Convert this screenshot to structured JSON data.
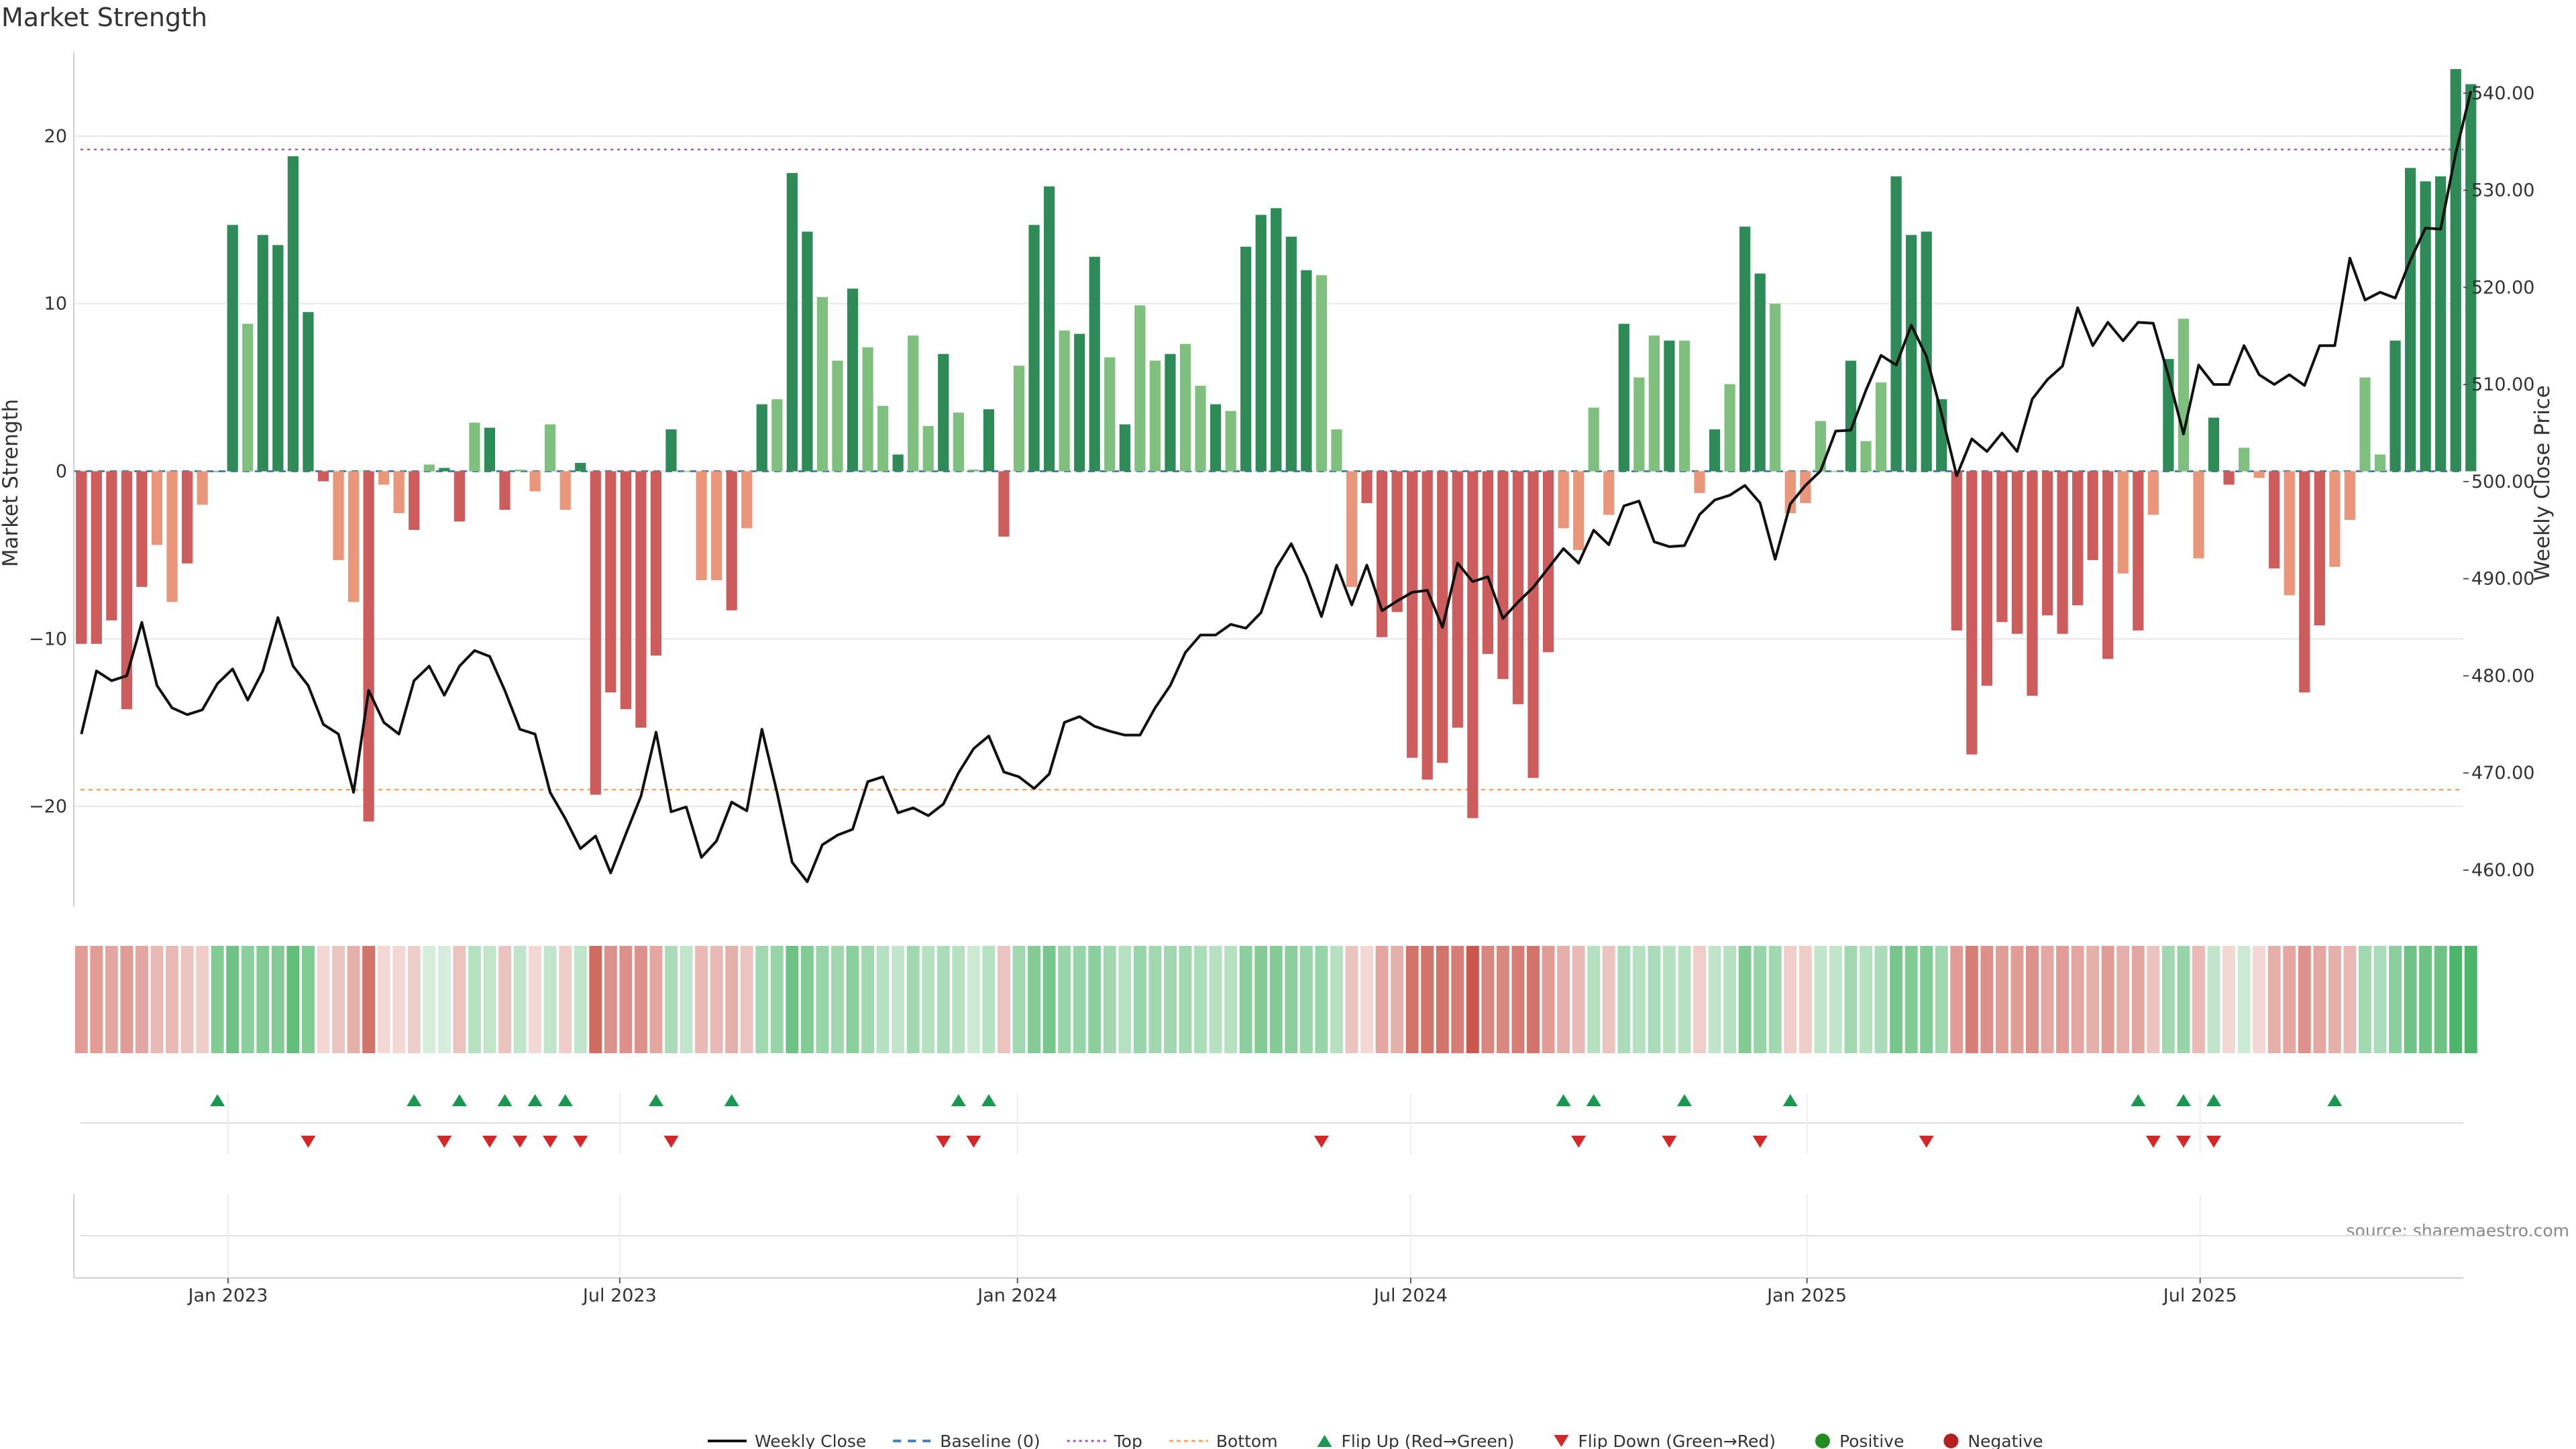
{
  "chart_data": {
    "title": "Market Strength",
    "source": "source: sharemaestro.com",
    "type": "bar",
    "y_left_label": "Market Strength",
    "y_right_label": "Weekly Close Price",
    "y_left_ticks": [
      "20",
      "10",
      "0",
      "−10",
      "−20"
    ],
    "y_left_tick_values": [
      20,
      10,
      0,
      -10,
      -20
    ],
    "y_right_ticks": [
      "540.00",
      "530.00",
      "520.00",
      "510.00",
      "500.00",
      "490.00",
      "480.00",
      "470.00",
      "460.00"
    ],
    "y_right_tick_values": [
      540,
      530,
      520,
      510,
      500,
      490,
      480,
      470,
      460
    ],
    "ylim_left": [
      -26,
      25
    ],
    "ylim_right": [
      456.2,
      544.2
    ],
    "x_ticks": [
      "Jan 2023",
      "Jul 2023",
      "Jan 2024",
      "Jul 2024",
      "Jan 2025",
      "Jul 2025"
    ],
    "x_tick_weeks": [
      9.7,
      35.6,
      61.9,
      87.9,
      114.1,
      140.1
    ],
    "top_line": 19.2,
    "bottom_line": -19,
    "baseline": 0,
    "weeks": 158,
    "strength": [
      -10.3,
      -10.3,
      -8.9,
      -14.2,
      -6.9,
      -4.4,
      -7.8,
      -5.5,
      -2,
      0,
      14.7,
      8.8,
      14.1,
      13.5,
      18.8,
      9.5,
      -0.6,
      -5.3,
      -7.8,
      -20.9,
      -0.8,
      -2.5,
      -3.5,
      0.4,
      0.2,
      -3,
      2.9,
      2.6,
      -2.3,
      0.1,
      -1.2,
      2.8,
      -2.3,
      0.5,
      -19.3,
      -13.2,
      -14.2,
      -15.3,
      -11,
      2.5,
      0,
      -6.5,
      -6.5,
      -8.3,
      -3.4,
      4,
      4.3,
      17.8,
      14.3,
      10.4,
      6.6,
      10.9,
      7.4,
      3.9,
      1,
      8.1,
      2.7,
      7,
      3.5,
      0.1,
      3.7,
      -3.9,
      6.3,
      14.7,
      17,
      8.4,
      8.2,
      12.8,
      6.8,
      2.8,
      9.9,
      6.6,
      7,
      7.6,
      5.1,
      4,
      3.6,
      13.4,
      15.3,
      15.7,
      14,
      12,
      11.7,
      2.5,
      -6.9,
      -1.9,
      -9.9,
      -8.4,
      -17.1,
      -18.4,
      -17.4,
      -15.3,
      -20.7,
      -10.9,
      -12.4,
      -13.9,
      -18.3,
      -10.8,
      -3.4,
      -4.7,
      3.8,
      -2.6,
      8.8,
      5.6,
      8.1,
      7.8,
      7.8,
      -1.3,
      2.5,
      5.2,
      14.6,
      11.8,
      10,
      -2.5,
      -1.9,
      3,
      0,
      6.6,
      1.8,
      5.3,
      17.6,
      14.1,
      14.3,
      4.3,
      -9.5,
      -16.9,
      -12.8,
      -9,
      -9.7,
      -13.4,
      -8.6,
      -9.7,
      -8,
      -5.3,
      -11.2,
      -6.1,
      -9.5,
      -2.6,
      6.7,
      9.1,
      -5.2,
      3.2,
      -0.8,
      1.4,
      -0.4,
      -5.8,
      -7.4,
      -13.2,
      -9.2,
      -5.7,
      -2.9,
      5.6,
      1,
      7.8,
      18.1,
      17.3,
      17.6,
      24,
      23.1
    ],
    "weekly_close": [
      474,
      480.5,
      479.5,
      480,
      485.5,
      479,
      476.7,
      476,
      476.5,
      479.2,
      480.7,
      477.5,
      480.5,
      486,
      481,
      479,
      475,
      474,
      468,
      478.5,
      475.2,
      474,
      479.5,
      481,
      478,
      481,
      482.6,
      482,
      478.5,
      474.5,
      474,
      468,
      465.3,
      462.2,
      463.5,
      459.7,
      463.7,
      467.6,
      474.2,
      466,
      466.5,
      461.3,
      463,
      467,
      466.1,
      474.5,
      468,
      460.8,
      458.8,
      462.6,
      463.6,
      464.2,
      469.1,
      469.6,
      465.9,
      466.4,
      465.6,
      466.8,
      470,
      472.5,
      473.8,
      470.1,
      469.6,
      468.4,
      469.9,
      475.2,
      475.8,
      474.8,
      474.3,
      473.9,
      473.9,
      476.7,
      479,
      482.4,
      484.2,
      484.2,
      485.3,
      484.9,
      486.5,
      491.1,
      493.6,
      490.3,
      486.1,
      491.4,
      487.3,
      491.4,
      486.7,
      487.7,
      488.6,
      488.8,
      485,
      491.6,
      489.7,
      490.2,
      485.9,
      487.6,
      489.1,
      491.1,
      493.1,
      491.6,
      495,
      493.5,
      497.5,
      498,
      493.8,
      493.3,
      493.4,
      496.6,
      498.1,
      498.6,
      499.6,
      497.8,
      492,
      497.7,
      499.6,
      501.1,
      505.2,
      505.3,
      509.4,
      513,
      512,
      516.1,
      512.9,
      507,
      500.6,
      504.4,
      503.1,
      505,
      503.1,
      508.5,
      510.5,
      511.9,
      517.9,
      514,
      516.4,
      514.5,
      516.4,
      516.3,
      510.9,
      504.9,
      512,
      510,
      510,
      514,
      511,
      510,
      511,
      509.9,
      514,
      514,
      523,
      518.7,
      519.5,
      518.9,
      522.8,
      526.1,
      526,
      533.8,
      540.2
    ],
    "heat_intensity": [
      0.5,
      0.5,
      0.45,
      0.5,
      0.45,
      0.35,
      0.35,
      0.3,
      0.25,
      0.6,
      0.7,
      0.55,
      0.6,
      0.6,
      0.75,
      0.6,
      0.2,
      0.3,
      0.4,
      0.7,
      0.2,
      0.2,
      0.25,
      0.2,
      0.2,
      0.3,
      0.35,
      0.3,
      0.3,
      0.3,
      0.2,
      0.3,
      0.25,
      0.3,
      0.75,
      0.55,
      0.55,
      0.55,
      0.45,
      0.4,
      0.3,
      0.35,
      0.35,
      0.4,
      0.3,
      0.45,
      0.5,
      0.7,
      0.6,
      0.5,
      0.45,
      0.55,
      0.45,
      0.35,
      0.3,
      0.45,
      0.35,
      0.4,
      0.35,
      0.25,
      0.35,
      0.3,
      0.45,
      0.6,
      0.65,
      0.5,
      0.5,
      0.55,
      0.45,
      0.35,
      0.5,
      0.45,
      0.45,
      0.45,
      0.4,
      0.35,
      0.35,
      0.55,
      0.6,
      0.6,
      0.55,
      0.5,
      0.5,
      0.35,
      0.3,
      0.2,
      0.45,
      0.4,
      0.7,
      0.7,
      0.7,
      0.65,
      0.85,
      0.6,
      0.6,
      0.65,
      0.7,
      0.5,
      0.4,
      0.35,
      0.35,
      0.3,
      0.4,
      0.35,
      0.4,
      0.35,
      0.35,
      0.25,
      0.3,
      0.35,
      0.6,
      0.5,
      0.45,
      0.25,
      0.25,
      0.3,
      0.3,
      0.45,
      0.35,
      0.4,
      0.65,
      0.6,
      0.6,
      0.45,
      0.5,
      0.65,
      0.55,
      0.5,
      0.5,
      0.55,
      0.45,
      0.5,
      0.45,
      0.4,
      0.5,
      0.4,
      0.45,
      0.3,
      0.45,
      0.5,
      0.35,
      0.3,
      0.2,
      0.25,
      0.2,
      0.4,
      0.45,
      0.55,
      0.45,
      0.4,
      0.35,
      0.45,
      0.4,
      0.55,
      0.7,
      0.7,
      0.7,
      0.85,
      0.85
    ],
    "flip_up_weeks": [
      9,
      22,
      25,
      28,
      30,
      32,
      38,
      43,
      58,
      60,
      98,
      100,
      106,
      113,
      136,
      139,
      141,
      149
    ],
    "flip_down_weeks": [
      15,
      24,
      27,
      29,
      31,
      33,
      39,
      57,
      59,
      82,
      99,
      105,
      111,
      122,
      137,
      139,
      141
    ],
    "colors": {
      "green_strong": "#2e8b57",
      "green_light": "#7fc07f",
      "red_strong": "#cd5c5c",
      "red_light": "#e9967a",
      "weekly_close": "#111111",
      "baseline": "#4682b4",
      "top": "#9b59b6",
      "bottom": "#f4a460",
      "flip_up": "#1a9850",
      "flip_down": "#d62728",
      "positive": "#228b22",
      "negative": "#b22222",
      "grid": "#e6e6e6"
    },
    "legend": {
      "placement": "bottom-center",
      "entries": [
        {
          "label": "Weekly Close",
          "kind": "line"
        },
        {
          "label": "Baseline (0)",
          "kind": "dash"
        },
        {
          "label": "Top",
          "kind": "dot-top"
        },
        {
          "label": "Bottom",
          "kind": "dot-bottom"
        },
        {
          "label": "Flip Up (Red→Green)",
          "kind": "tri-up"
        },
        {
          "label": "Flip Down (Green→Red)",
          "kind": "tri-down"
        },
        {
          "label": "Positive",
          "kind": "dot-pos"
        },
        {
          "label": "Negative",
          "kind": "dot-neg"
        }
      ]
    }
  }
}
